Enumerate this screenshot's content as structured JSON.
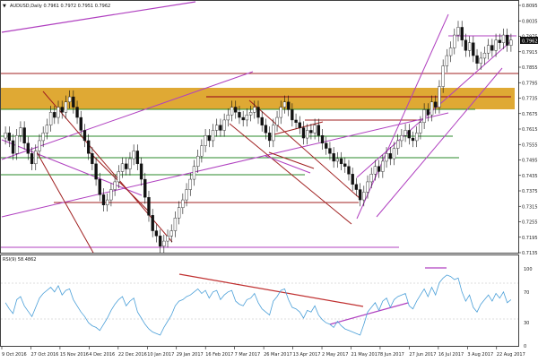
{
  "chart_data": [
    {
      "type": "candlestick",
      "title": "AUDUSD,Daily  0.7961 0.7972 0.7951 0.7962",
      "symbol_header": "AUDUSD,Daily",
      "ohlc_header": "0.7961 0.7972 0.7951 0.7962",
      "ylim": [
        0.7135,
        0.8095
      ],
      "y_ticks": [
        "0.8095",
        "0.8035",
        "0.7975",
        "0.7915",
        "0.7855",
        "0.7795",
        "0.7735",
        "0.7675",
        "0.7615",
        "0.7555",
        "0.7495",
        "0.7435",
        "0.7375",
        "0.7315",
        "0.7255",
        "0.7195",
        "0.7135"
      ],
      "x_ticks": [
        "9 Oct 2016",
        "27 Oct 2016",
        "15 Nov 2016",
        "4 Dec 2016",
        "22 Dec 2016",
        "10 Jan 2017",
        "29 Jan 2017",
        "16 Feb 2017",
        "7 Mar 2017",
        "26 Mar 2017",
        "13 Apr 2017",
        "2 May 2017",
        "21 May 2017",
        "8 Jun 2017",
        "27 Jun 2017",
        "16 Jul 2017",
        "3 Aug 2017",
        "22 Aug 2017"
      ],
      "current_price": "0.7962",
      "closes": [
        0.76,
        0.757,
        0.752,
        0.759,
        0.762,
        0.756,
        0.752,
        0.748,
        0.753,
        0.757,
        0.76,
        0.763,
        0.768,
        0.766,
        0.77,
        0.768,
        0.772,
        0.774,
        0.77,
        0.766,
        0.761,
        0.757,
        0.752,
        0.748,
        0.742,
        0.736,
        0.732,
        0.734,
        0.738,
        0.741,
        0.745,
        0.748,
        0.746,
        0.75,
        0.753,
        0.748,
        0.742,
        0.735,
        0.728,
        0.722,
        0.72,
        0.716,
        0.718,
        0.72,
        0.722,
        0.727,
        0.731,
        0.734,
        0.738,
        0.742,
        0.747,
        0.751,
        0.755,
        0.759,
        0.757,
        0.761,
        0.763,
        0.761,
        0.765,
        0.767,
        0.77,
        0.768,
        0.766,
        0.765,
        0.767,
        0.768,
        0.77,
        0.766,
        0.763,
        0.76,
        0.757,
        0.763,
        0.766,
        0.77,
        0.772,
        0.769,
        0.765,
        0.764,
        0.762,
        0.758,
        0.761,
        0.76,
        0.763,
        0.759,
        0.756,
        0.754,
        0.752,
        0.749,
        0.75,
        0.748,
        0.747,
        0.744,
        0.74,
        0.738,
        0.734,
        0.737,
        0.741,
        0.744,
        0.747,
        0.745,
        0.749,
        0.752,
        0.75,
        0.754,
        0.757,
        0.759,
        0.761,
        0.758,
        0.757,
        0.76,
        0.764,
        0.769,
        0.767,
        0.772,
        0.77,
        0.778,
        0.786,
        0.79,
        0.793,
        0.798,
        0.801,
        0.796,
        0.792,
        0.795,
        0.79,
        0.787,
        0.789,
        0.791,
        0.794,
        0.792,
        0.796,
        0.795,
        0.798,
        0.794,
        0.796
      ]
    },
    {
      "type": "line",
      "title": "RSI(9) 58.4862",
      "series": [
        {
          "name": "RSI(9) 58.4862",
          "values": [
            56,
            48,
            42,
            60,
            64,
            52,
            45,
            38,
            50,
            62,
            68,
            72,
            76,
            70,
            78,
            66,
            72,
            74,
            60,
            52,
            44,
            38,
            30,
            26,
            24,
            20,
            28,
            36,
            46,
            54,
            60,
            64,
            52,
            58,
            62,
            44,
            36,
            28,
            22,
            18,
            16,
            14,
            24,
            32,
            40,
            52,
            58,
            60,
            64,
            66,
            70,
            74,
            68,
            72,
            62,
            70,
            72,
            60,
            66,
            70,
            72,
            58,
            54,
            52,
            60,
            62,
            68,
            56,
            48,
            44,
            40,
            58,
            64,
            72,
            74,
            60,
            50,
            48,
            44,
            36,
            46,
            44,
            52,
            40,
            34,
            30,
            28,
            24,
            32,
            26,
            22,
            20,
            18,
            16,
            14,
            28,
            44,
            50,
            56,
            46,
            58,
            62,
            50,
            60,
            64,
            66,
            68,
            52,
            48,
            58,
            66,
            74,
            64,
            76,
            66,
            82,
            88,
            92,
            90,
            86,
            88,
            70,
            58,
            66,
            50,
            44,
            54,
            60,
            66,
            58,
            68,
            62,
            70,
            56,
            60
          ]
        }
      ],
      "ylim": [
        0,
        100
      ],
      "y_ticks": [
        "100",
        "70",
        "30",
        "0"
      ]
    }
  ]
}
